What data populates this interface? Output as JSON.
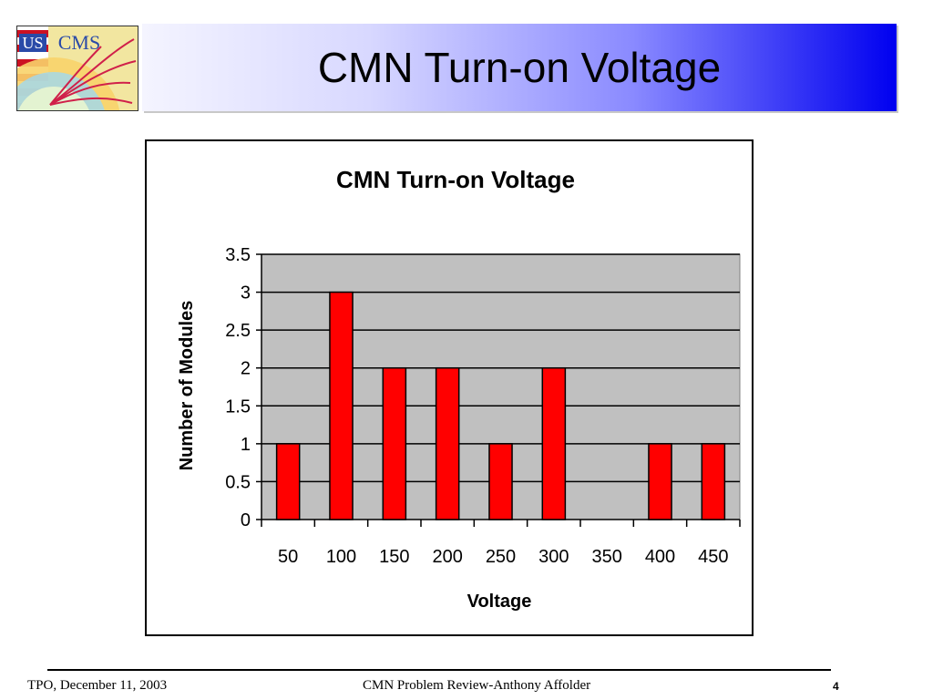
{
  "slide": {
    "title": "CMN Turn-on Voltage",
    "logo_text_us": "US",
    "logo_text_cms": "CMS"
  },
  "chart_data": {
    "type": "bar",
    "title": "CMN Turn-on Voltage",
    "xlabel": "Voltage",
    "ylabel": "Number of Modules",
    "categories": [
      "50",
      "100",
      "150",
      "200",
      "250",
      "300",
      "350",
      "400",
      "450"
    ],
    "values": [
      1,
      3,
      2,
      2,
      1,
      2,
      0,
      1,
      1
    ],
    "ylim": [
      0,
      3.5
    ],
    "yticks": [
      "0",
      "0.5",
      "1",
      "1.5",
      "2",
      "2.5",
      "3",
      "3.5"
    ],
    "grid": true,
    "bar_color": "#ff0000",
    "plot_background": "#c0c0c0"
  },
  "footer": {
    "left": "TPO, December 11, 2003",
    "center": "CMN Problem Review-Anthony Affolder",
    "page": "4"
  }
}
